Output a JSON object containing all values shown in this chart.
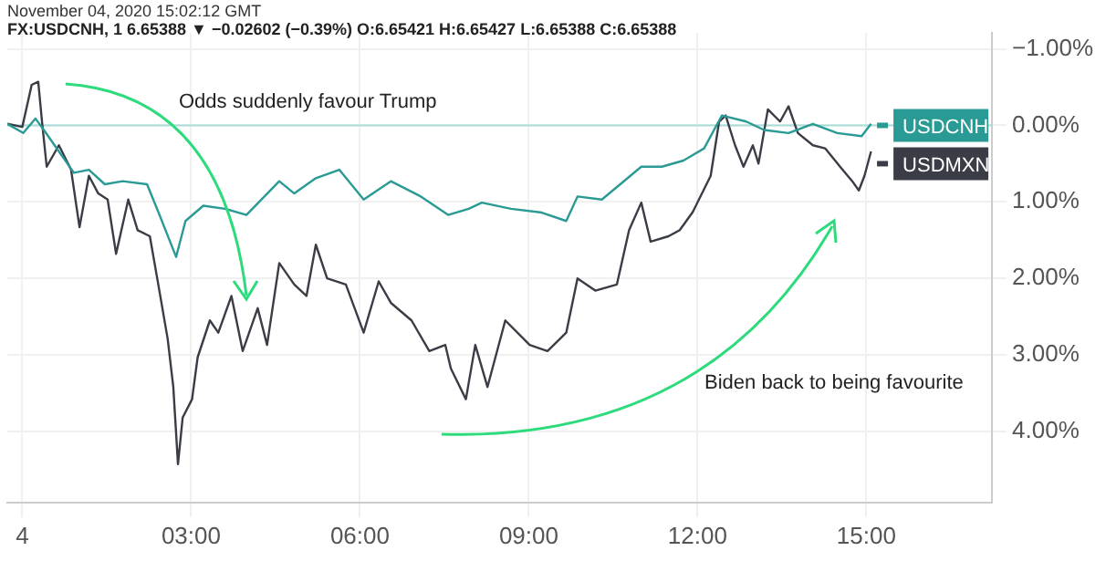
{
  "chart_data": {
    "type": "line",
    "annotations": [
      "November 04, 2020 15:02:12 GMT",
      "FX:USDCNH, 1 6.65388 ▼ −0.02602 (−0.39%) O:6.65421 H:6.65427 L:6.65388 C:6.65388",
      "Odds suddenly favour Trump",
      "Biden back to being favourite"
    ],
    "series": [
      {
        "name": "USDCNH",
        "color": "#2a9a94",
        "x": [
          "2020-11-03T23:44",
          "2020-11-04T00:01",
          "2020-11-04T00:14",
          "2020-11-04T00:23",
          "2020-11-04T00:39",
          "2020-11-04T00:55",
          "2020-11-04T01:11",
          "2020-11-04T01:28",
          "2020-11-04T01:47",
          "2020-11-04T02:13",
          "2020-11-04T02:25",
          "2020-11-04T02:44",
          "2020-11-04T02:54",
          "2020-11-04T03:13",
          "2020-11-04T03:36",
          "2020-11-04T03:59",
          "2020-11-04T04:34",
          "2020-11-04T04:50",
          "2020-11-04T05:13",
          "2020-11-04T05:38",
          "2020-11-04T06:04",
          "2020-11-04T06:33",
          "2020-11-04T07:05",
          "2020-11-04T07:34",
          "2020-11-04T07:56",
          "2020-11-04T08:10",
          "2020-11-04T08:41",
          "2020-11-04T09:14",
          "2020-11-04T09:40",
          "2020-11-04T09:52",
          "2020-11-04T10:18",
          "2020-11-04T11:00",
          "2020-11-04T11:22",
          "2020-11-04T11:45",
          "2020-11-04T12:07",
          "2020-11-04T12:26",
          "2020-11-04T12:52",
          "2020-11-04T13:11",
          "2020-11-04T13:37",
          "2020-11-04T14:03",
          "2020-11-04T14:29",
          "2020-11-04T14:55",
          "2020-11-04T15:05"
        ],
        "values": [
          -0.02,
          0.1,
          -0.09,
          0.06,
          0.34,
          0.62,
          0.58,
          0.77,
          0.73,
          0.77,
          1.13,
          1.72,
          1.25,
          1.05,
          1.09,
          1.17,
          0.73,
          0.89,
          0.69,
          0.58,
          0.97,
          0.73,
          0.93,
          1.17,
          1.09,
          1.01,
          1.09,
          1.14,
          1.25,
          0.93,
          0.97,
          0.54,
          0.54,
          0.46,
          0.3,
          -0.13,
          -0.05,
          0.06,
          0.1,
          -0.02,
          0.1,
          0.14,
          -0.02
        ]
      },
      {
        "name": "USDMXN",
        "color": "#3a3d46",
        "x": [
          "2020-11-03T23:44",
          "2020-11-04T00:00",
          "2020-11-04T00:10",
          "2020-11-04T00:17",
          "2020-11-04T00:21",
          "2020-11-04T00:26",
          "2020-11-04T00:39",
          "2020-11-04T00:52",
          "2020-11-04T01:01",
          "2020-11-04T01:11",
          "2020-11-04T01:21",
          "2020-11-04T01:31",
          "2020-11-04T01:40",
          "2020-11-04T01:53",
          "2020-11-04T02:03",
          "2020-11-04T02:16",
          "2020-11-04T02:25",
          "2020-11-04T02:35",
          "2020-11-04T02:41",
          "2020-11-04T02:46",
          "2020-11-04T02:51",
          "2020-11-04T03:01",
          "2020-11-04T03:07",
          "2020-11-04T03:20",
          "2020-11-04T03:29",
          "2020-11-04T03:43",
          "2020-11-04T03:55",
          "2020-11-04T04:11",
          "2020-11-04T04:21",
          "2020-11-04T04:34",
          "2020-11-04T04:50",
          "2020-11-04T05:03",
          "2020-11-04T05:13",
          "2020-11-04T05:25",
          "2020-11-04T05:45",
          "2020-11-04T06:04",
          "2020-11-04T06:20",
          "2020-11-04T06:33",
          "2020-11-04T06:55",
          "2020-11-04T07:14",
          "2020-11-04T07:31",
          "2020-11-04T07:37",
          "2020-11-04T07:53",
          "2020-11-04T08:03",
          "2020-11-04T08:16",
          "2020-11-04T08:35",
          "2020-11-04T09:01",
          "2020-11-04T09:20",
          "2020-11-04T09:40",
          "2020-11-04T09:52",
          "2020-11-04T10:11",
          "2020-11-04T10:34",
          "2020-11-04T10:47",
          "2020-11-04T11:00",
          "2020-11-04T11:10",
          "2020-11-04T11:29",
          "2020-11-04T11:41",
          "2020-11-04T11:55",
          "2020-11-04T12:14",
          "2020-11-04T12:23",
          "2020-11-04T12:30",
          "2020-11-04T12:40",
          "2020-11-04T12:49",
          "2020-11-04T12:59",
          "2020-11-04T13:05",
          "2020-11-04T13:15",
          "2020-11-04T13:28",
          "2020-11-04T13:37",
          "2020-11-04T13:47",
          "2020-11-04T14:03",
          "2020-11-04T14:16",
          "2020-11-04T14:32",
          "2020-11-04T14:45",
          "2020-11-04T14:52",
          "2020-11-04T14:58",
          "2020-11-04T15:05"
        ],
        "values": [
          -0.02,
          0.02,
          -0.53,
          -0.57,
          -0.05,
          0.54,
          0.26,
          0.58,
          1.33,
          0.66,
          0.89,
          0.97,
          1.68,
          0.97,
          1.37,
          1.45,
          2.08,
          2.79,
          3.42,
          4.43,
          3.82,
          3.58,
          3.03,
          2.55,
          2.71,
          2.23,
          2.95,
          2.39,
          2.87,
          1.8,
          2.08,
          2.23,
          1.56,
          2.0,
          2.08,
          2.71,
          2.04,
          2.32,
          2.55,
          2.95,
          2.87,
          3.18,
          3.58,
          2.87,
          3.42,
          2.55,
          2.87,
          2.95,
          2.71,
          2.0,
          2.16,
          2.08,
          1.37,
          1.01,
          1.52,
          1.45,
          1.37,
          1.13,
          0.66,
          -0.05,
          -0.13,
          0.26,
          0.54,
          0.26,
          0.5,
          -0.21,
          -0.05,
          -0.25,
          0.1,
          0.26,
          0.3,
          0.54,
          0.73,
          0.85,
          0.66,
          0.34
        ]
      }
    ],
    "xlim": [
      "2020-11-03T23:44",
      "2020-11-04T17:14"
    ],
    "xticks": [
      {
        "value": "2020-11-04T00:00",
        "label": "4"
      },
      {
        "value": "2020-11-04T03:00",
        "label": "03:00"
      },
      {
        "value": "2020-11-04T06:00",
        "label": "06:00"
      },
      {
        "value": "2020-11-04T09:00",
        "label": "09:00"
      },
      {
        "value": "2020-11-04T12:00",
        "label": "12:00"
      },
      {
        "value": "2020-11-04T15:00",
        "label": "15:00"
      }
    ],
    "ylim": [
      4.93,
      -1.21
    ],
    "yticks": [
      {
        "value": -1,
        "label": "−1.00%"
      },
      {
        "value": 0,
        "label": "0.00%"
      },
      {
        "value": 1,
        "label": "1.00%"
      },
      {
        "value": 2,
        "label": "2.00%"
      },
      {
        "value": 3,
        "label": "3.00%"
      },
      {
        "value": 4,
        "label": "4.00%"
      }
    ],
    "ref_lines": [
      {
        "axis": "y",
        "value": 0,
        "color": "#a8dcd6"
      }
    ],
    "grid": true,
    "legend": "right",
    "marker": "none",
    "line_style": "solid"
  }
}
